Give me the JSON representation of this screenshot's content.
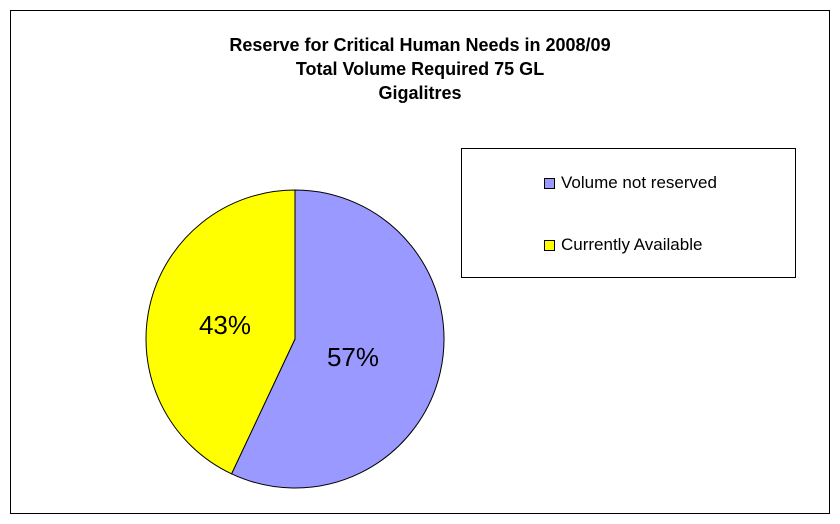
{
  "chart_data": {
    "type": "pie",
    "title": "Reserve for Critical Human Needs in 2008/09",
    "subtitle": "Total Volume Required 75 GL",
    "subtitle2": "Gigalitres",
    "slices": [
      {
        "name": "Volume not reserved",
        "value": 57,
        "label": "57%",
        "color": "#9999ff"
      },
      {
        "name": "Currently Available",
        "value": 43,
        "label": "43%",
        "color": "#ffff00"
      }
    ],
    "legend_position": "right"
  }
}
